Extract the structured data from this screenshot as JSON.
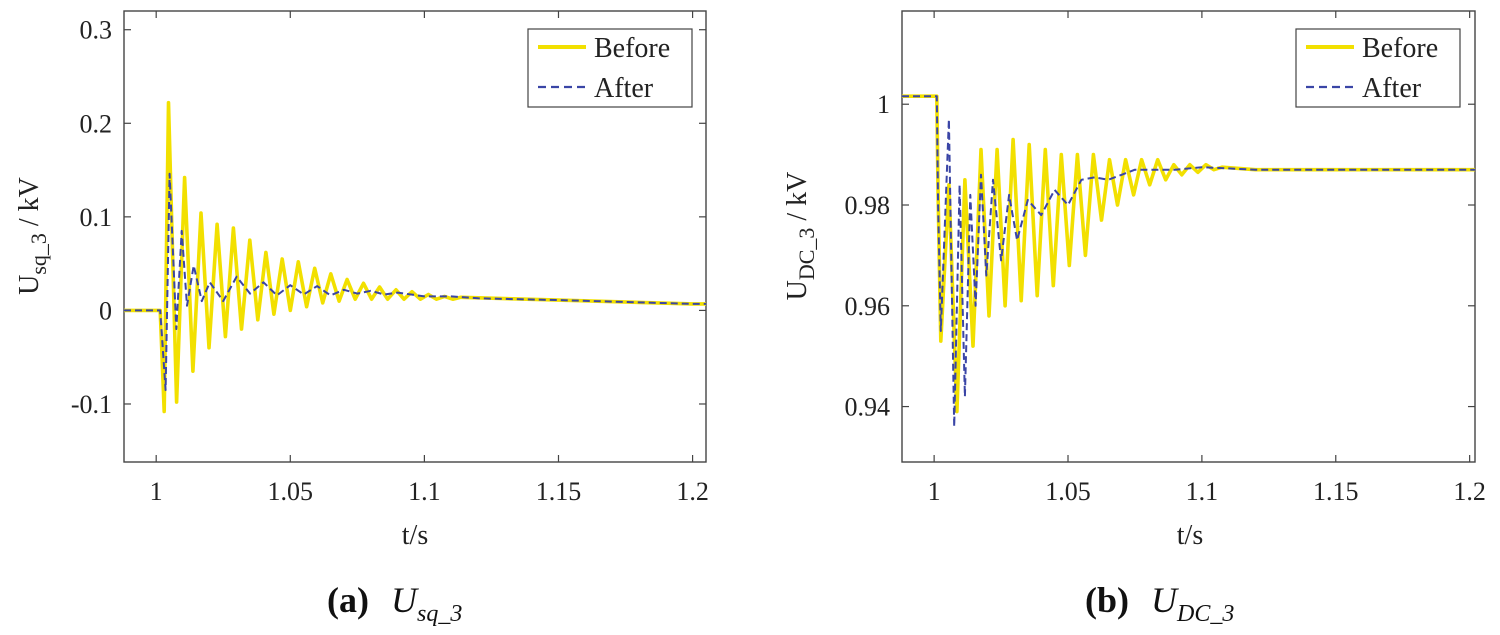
{
  "charts": [
    {
      "id": "a",
      "caption_label": "(a)",
      "caption_var": "U",
      "caption_sub": "sq_3",
      "ylabel_main": "U",
      "ylabel_sub": "sq_3",
      "ylabel_unit": " / kV",
      "xlabel": "t/s",
      "xlim": [
        0.988,
        1.205
      ],
      "ylim": [
        -0.162,
        0.32
      ],
      "xticks": [
        1,
        1.05,
        1.1,
        1.15,
        1.2
      ],
      "xtick_labels": [
        "1",
        "1.05",
        "1.1",
        "1.15",
        "1.2"
      ],
      "yticks": [
        -0.1,
        0,
        0.1,
        0.2,
        0.3
      ],
      "ytick_labels": [
        "-0.1",
        "0",
        "0.1",
        "0.2",
        "0.3"
      ]
    },
    {
      "id": "b",
      "caption_label": "(b)",
      "caption_var": "U",
      "caption_sub": "DC_3",
      "ylabel_main": "U",
      "ylabel_sub": "DC_3",
      "ylabel_unit": " / kV",
      "xlabel": "t/s",
      "xlim": [
        0.988,
        1.202
      ],
      "ylim": [
        0.929,
        1.0185
      ],
      "xticks": [
        1,
        1.05,
        1.1,
        1.15,
        1.2
      ],
      "xtick_labels": [
        "1",
        "1.05",
        "1.1",
        "1.15",
        "1.2"
      ],
      "yticks": [
        0.94,
        0.96,
        0.98,
        1
      ],
      "ytick_labels": [
        "0.94",
        "0.96",
        "0.98",
        "1"
      ]
    }
  ],
  "legend": {
    "before": "Before",
    "after": "After"
  },
  "colors": {
    "before": "#f2e000",
    "after": "#3a45a6"
  },
  "chart_data": [
    {
      "type": "line",
      "title": "(a) U_sq_3",
      "xlabel": "t/s",
      "ylabel": "U_sq_3 / kV",
      "xlim": [
        0.988,
        1.205
      ],
      "ylim": [
        -0.162,
        0.32
      ],
      "series": [
        {
          "name": "Before",
          "x": [
            0.988,
            1.0015,
            1.003,
            1.0046,
            1.0076,
            1.0106,
            1.0137,
            1.0167,
            1.0197,
            1.0227,
            1.0258,
            1.0288,
            1.0318,
            1.0349,
            1.0379,
            1.0409,
            1.0439,
            1.047,
            1.05,
            1.053,
            1.0561,
            1.0591,
            1.0621,
            1.0651,
            1.0682,
            1.0712,
            1.0742,
            1.0773,
            1.0803,
            1.0833,
            1.0863,
            1.0894,
            1.0924,
            1.0954,
            1.0985,
            1.1015,
            1.1045,
            1.1075,
            1.1106,
            1.1136,
            1.15,
            1.2,
            1.205
          ],
          "y": [
            0,
            0,
            -0.108,
            0.222,
            -0.098,
            0.142,
            -0.065,
            0.104,
            -0.04,
            0.092,
            -0.028,
            0.088,
            -0.02,
            0.075,
            -0.01,
            0.062,
            -0.004,
            0.055,
            0.0,
            0.052,
            0.004,
            0.045,
            0.008,
            0.039,
            0.01,
            0.033,
            0.012,
            0.029,
            0.012,
            0.025,
            0.012,
            0.022,
            0.012,
            0.02,
            0.012,
            0.017,
            0.012,
            0.015,
            0.012,
            0.014,
            0.011,
            0.007,
            0.007
          ]
        },
        {
          "name": "After",
          "x": [
            0.988,
            1.0015,
            1.0035,
            1.005,
            1.0075,
            1.0095,
            1.0115,
            1.014,
            1.017,
            1.02,
            1.025,
            1.03,
            1.035,
            1.04,
            1.045,
            1.05,
            1.055,
            1.06,
            1.065,
            1.07,
            1.075,
            1.08,
            1.085,
            1.09,
            1.1,
            1.11,
            1.12,
            1.15,
            1.2,
            1.205
          ],
          "y": [
            0,
            0,
            -0.085,
            0.146,
            -0.02,
            0.085,
            0.005,
            0.048,
            0.01,
            0.03,
            0.01,
            0.036,
            0.018,
            0.03,
            0.016,
            0.027,
            0.017,
            0.026,
            0.016,
            0.022,
            0.018,
            0.021,
            0.017,
            0.019,
            0.015,
            0.015,
            0.013,
            0.011,
            0.007,
            0.007
          ]
        }
      ]
    },
    {
      "type": "line",
      "title": "(b) U_DC_3",
      "xlabel": "t/s",
      "ylabel": "U_DC_3 / kV",
      "xlim": [
        0.988,
        1.202
      ],
      "ylim": [
        0.929,
        1.0185
      ],
      "series": [
        {
          "name": "Before",
          "x": [
            0.988,
            1.001,
            1.0015,
            1.0025,
            1.0055,
            1.0085,
            1.0115,
            1.0145,
            1.0175,
            1.0205,
            1.0235,
            1.0265,
            1.0295,
            1.0325,
            1.0355,
            1.0385,
            1.0415,
            1.0445,
            1.0475,
            1.0505,
            1.0535,
            1.0565,
            1.0595,
            1.0625,
            1.0655,
            1.0685,
            1.0715,
            1.0745,
            1.0775,
            1.0805,
            1.0835,
            1.0865,
            1.0895,
            1.0925,
            1.0955,
            1.0985,
            1.1015,
            1.1045,
            1.1075,
            1.12,
            1.15,
            1.2,
            1.202
          ],
          "y": [
            1.0016,
            1.0016,
            0.982,
            0.953,
            0.984,
            0.939,
            0.985,
            0.952,
            0.991,
            0.958,
            0.991,
            0.96,
            0.993,
            0.961,
            0.992,
            0.962,
            0.991,
            0.964,
            0.99,
            0.968,
            0.99,
            0.97,
            0.99,
            0.977,
            0.989,
            0.98,
            0.989,
            0.982,
            0.989,
            0.984,
            0.989,
            0.985,
            0.988,
            0.986,
            0.988,
            0.9865,
            0.988,
            0.987,
            0.9875,
            0.987,
            0.987,
            0.987,
            0.987
          ]
        },
        {
          "name": "After",
          "x": [
            0.988,
            1.001,
            1.0015,
            1.0025,
            1.0055,
            1.0075,
            1.0095,
            1.0115,
            1.0135,
            1.0155,
            1.0175,
            1.0195,
            1.022,
            1.025,
            1.028,
            1.031,
            1.035,
            1.04,
            1.045,
            1.05,
            1.055,
            1.06,
            1.065,
            1.07,
            1.075,
            1.08,
            1.09,
            1.1,
            1.12,
            1.15,
            1.2,
            1.202
          ],
          "y": [
            1.0016,
            1.0016,
            0.98,
            0.955,
            0.997,
            0.936,
            0.984,
            0.942,
            0.982,
            0.96,
            0.986,
            0.966,
            0.985,
            0.969,
            0.982,
            0.973,
            0.981,
            0.978,
            0.983,
            0.98,
            0.985,
            0.9855,
            0.985,
            0.986,
            0.987,
            0.987,
            0.987,
            0.9875,
            0.987,
            0.987,
            0.987,
            0.987
          ]
        }
      ]
    }
  ]
}
